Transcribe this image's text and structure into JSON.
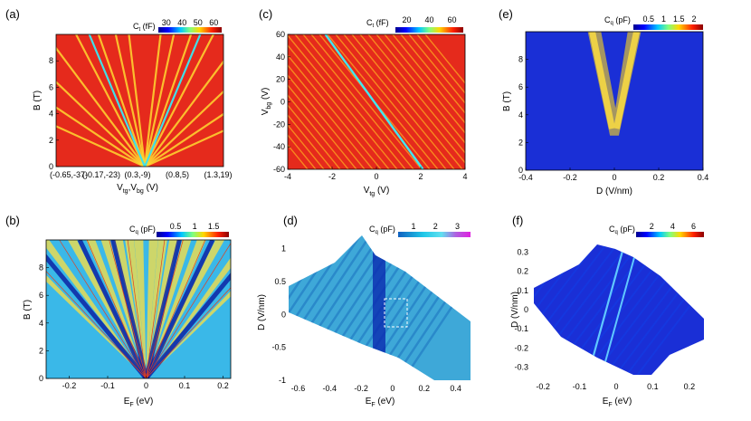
{
  "chart_data": [
    {
      "type": "heatmap",
      "panel_label": "(a)",
      "ylabel": "B (T)",
      "xlabel": "V_tg,V_bg (V)",
      "xlabel_main": "V",
      "xlabel_sub": "tg",
      "xlabel_sep": ",V",
      "xlabel_sub2": "bg",
      "xlabel_unit": " (V)",
      "ylim": [
        0,
        10
      ],
      "y_ticks": [
        "0",
        "2",
        "4",
        "6",
        "8"
      ],
      "x_ticks": [
        "(-0.65,-37)",
        "(-0.17,-23)",
        "(0.3,-9)",
        "(0.8,5)",
        "(1.3,19)"
      ],
      "colorbar": {
        "label_main": "C",
        "label_sub": "t",
        "label_unit": " (fF)",
        "ticks": [
          "30",
          "40",
          "50",
          "60"
        ],
        "range": [
          25,
          65
        ],
        "colormap": "jet"
      },
      "description_colors": {
        "background": "#e8201a",
        "fringe": "#ffe040"
      }
    },
    {
      "type": "heatmap",
      "panel_label": "(c)",
      "ylabel_main": "V",
      "ylabel_sub": "bg",
      "ylabel_unit": " (V)",
      "xlabel_main": "V",
      "xlabel_sub": "tg",
      "xlabel_unit": " (V)",
      "xlim": [
        -4,
        4
      ],
      "ylim": [
        -60,
        60
      ],
      "x_ticks": [
        "-4",
        "-2",
        "0",
        "2",
        "4"
      ],
      "y_ticks": [
        "60",
        "40",
        "20",
        "0",
        "-20",
        "-40",
        "-60"
      ],
      "colorbar": {
        "label_main": "C",
        "label_sub": "t",
        "label_unit": " (fF)",
        "ticks": [
          "20",
          "40",
          "60"
        ],
        "range": [
          10,
          70
        ],
        "colormap": "jet"
      }
    },
    {
      "type": "heatmap",
      "panel_label": "(e)",
      "ylabel": "B (T)",
      "xlabel": "D (V/nm)",
      "xlim": [
        -0.4,
        0.4
      ],
      "ylim": [
        0,
        10
      ],
      "x_ticks": [
        "-0.4",
        "-0.2",
        "0",
        "0.2",
        "0.4"
      ],
      "y_ticks": [
        "0",
        "2",
        "4",
        "6",
        "8"
      ],
      "colorbar": {
        "label_main": "C",
        "label_sub": "q",
        "label_unit": " (pF)",
        "ticks": [
          "0.5",
          "1",
          "1.5",
          "2"
        ],
        "range": [
          0,
          2.3
        ],
        "colormap": "jet"
      }
    },
    {
      "type": "heatmap",
      "panel_label": "(b)",
      "ylabel": "B (T)",
      "xlabel_main": "E",
      "xlabel_sub": "F",
      "xlabel_unit": " (eV)",
      "xlim": [
        -0.26,
        0.22
      ],
      "ylim": [
        0,
        10
      ],
      "x_ticks": [
        "-0.2",
        "-0.1",
        "0",
        "0.1",
        "0.2"
      ],
      "y_ticks": [
        "0",
        "2",
        "4",
        "6",
        "8"
      ],
      "colorbar": {
        "label_main": "C",
        "label_sub": "q",
        "label_unit": " (pF)",
        "ticks": [
          "0.5",
          "1",
          "1.5"
        ],
        "range": [
          0,
          1.9
        ],
        "colormap": "jet"
      }
    },
    {
      "type": "heatmap",
      "panel_label": "(d)",
      "ylabel": "D (V/nm)",
      "xlabel_main": "E",
      "xlabel_sub": "F",
      "xlabel_unit": " (eV)",
      "xlim": [
        -0.66,
        0.5
      ],
      "ylim": [
        -1,
        1.2
      ],
      "x_ticks": [
        "-0.6",
        "-0.4",
        "-0.2",
        "0",
        "0.2",
        "0.4"
      ],
      "y_ticks": [
        "1",
        "0.5",
        "0",
        "-0.5",
        "-1"
      ],
      "colorbar": {
        "label_main": "C",
        "label_sub": "q",
        "label_unit": " (pF)",
        "ticks": [
          "1",
          "2",
          "3"
        ],
        "range": [
          0.3,
          3.6
        ],
        "colormap": "jet-to-magenta"
      }
    },
    {
      "type": "heatmap",
      "panel_label": "(f)",
      "ylabel": "D (V/nm)",
      "xlabel_main": "E",
      "xlabel_sub": "F",
      "xlabel_unit": " (eV)",
      "xlim": [
        -0.23,
        0.24
      ],
      "ylim": [
        -0.35,
        0.35
      ],
      "x_ticks": [
        "-0.2",
        "-0.1",
        "0",
        "0.1",
        "0.2"
      ],
      "y_ticks": [
        "0.3",
        "0.2",
        "0.1",
        "0",
        "-0.1",
        "-0.2",
        "-0.3"
      ],
      "colorbar": {
        "label_main": "C",
        "label_sub": "q",
        "label_unit": " (pF)",
        "ticks": [
          "2",
          "4",
          "6"
        ],
        "range": [
          0.5,
          7
        ],
        "colormap": "jet"
      }
    }
  ]
}
